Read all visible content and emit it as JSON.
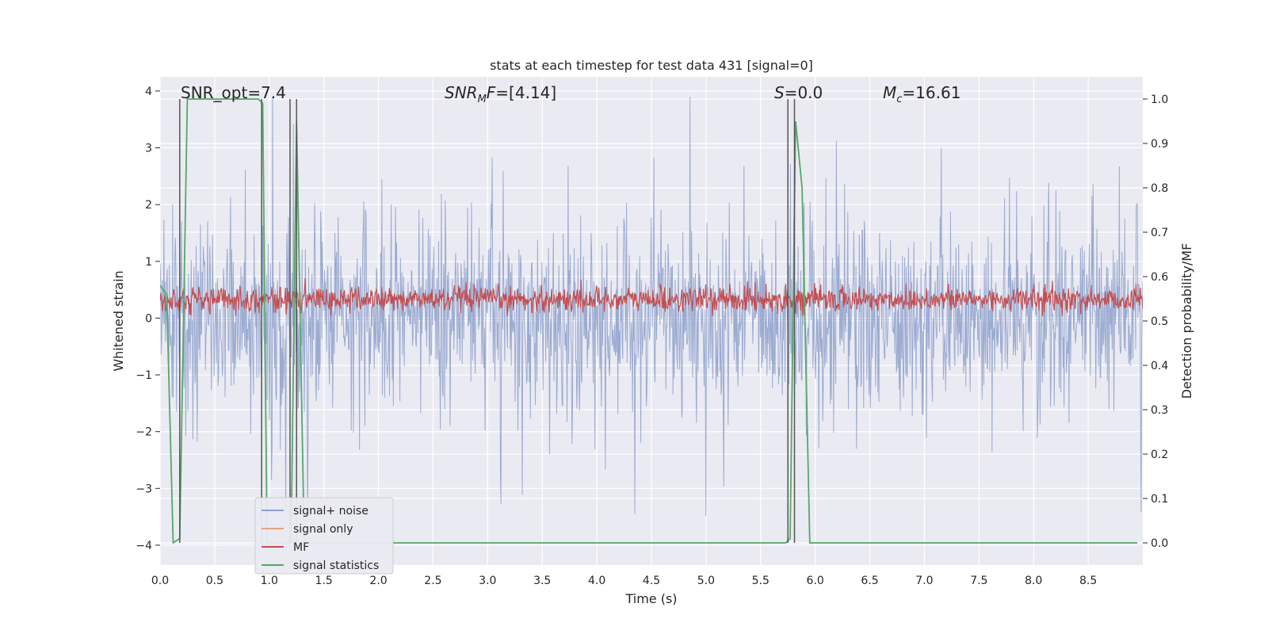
{
  "chart_data": {
    "type": "line",
    "title": "stats at each timestep for test data 431 [signal=0]",
    "xlabel": "Time (s)",
    "ylabel_left": "Whitened strain",
    "ylabel_right": "Detection probability/MF",
    "xlim": [
      0.0,
      9.0
    ],
    "ylim_left": [
      -4.35,
      4.25
    ],
    "ylim_right": [
      -0.05,
      1.05
    ],
    "x_ticks": [
      "0.0",
      "0.5",
      "1.0",
      "1.5",
      "2.0",
      "2.5",
      "3.0",
      "3.5",
      "4.0",
      "4.5",
      "5.0",
      "5.5",
      "6.0",
      "6.5",
      "7.0",
      "7.5",
      "8.0",
      "8.5"
    ],
    "y_ticks_left": [
      "4",
      "3",
      "2",
      "1",
      "0",
      "−1",
      "−2",
      "−3",
      "−4"
    ],
    "y_ticks_right": [
      "1.0",
      "0.9",
      "0.8",
      "0.7",
      "0.6",
      "0.5",
      "0.4",
      "0.3",
      "0.2",
      "0.1",
      "0.0"
    ],
    "grid": true,
    "legend_position": "lower-left",
    "annotations": {
      "snr_opt": "SNR_opt=7.4",
      "snr_mf": "=[4.14]",
      "s": "=0.0",
      "mc": "=16.61"
    },
    "vertical_markers_x": [
      0.18,
      0.93,
      1.19,
      1.25,
      5.75,
      5.81
    ],
    "series": [
      {
        "name": "signal+ noise",
        "color": "#8da0cb",
        "axis": "left",
        "envelope_upper_approx": 1.5,
        "envelope_lower_approx": -1.5,
        "values": []
      },
      {
        "name": "signal only",
        "color": "#e8a27c",
        "axis": "left",
        "values": []
      },
      {
        "name": "MF",
        "color": "#c44e52",
        "axis": "left",
        "band_approx": [
          0.1,
          0.6
        ],
        "values": []
      },
      {
        "name": "signal statistics",
        "color": "#55a868",
        "axis": "right",
        "x": [
          0.0,
          0.06,
          0.12,
          0.18,
          0.25,
          0.3,
          0.5,
          0.7,
          0.9,
          0.94,
          0.98,
          1.2,
          1.25,
          1.32,
          1.5,
          3.0,
          5.0,
          5.73,
          5.77,
          5.82,
          5.88,
          5.95,
          6.2,
          7.5,
          8.95
        ],
        "values": [
          0.58,
          0.56,
          0.0,
          0.01,
          1.0,
          1.0,
          1.0,
          1.0,
          1.0,
          0.99,
          0.0,
          0.0,
          0.95,
          0.0,
          0.0,
          0.0,
          0.0,
          0.0,
          0.01,
          0.95,
          0.8,
          0.0,
          0.0,
          0.0,
          0.0
        ]
      }
    ]
  }
}
